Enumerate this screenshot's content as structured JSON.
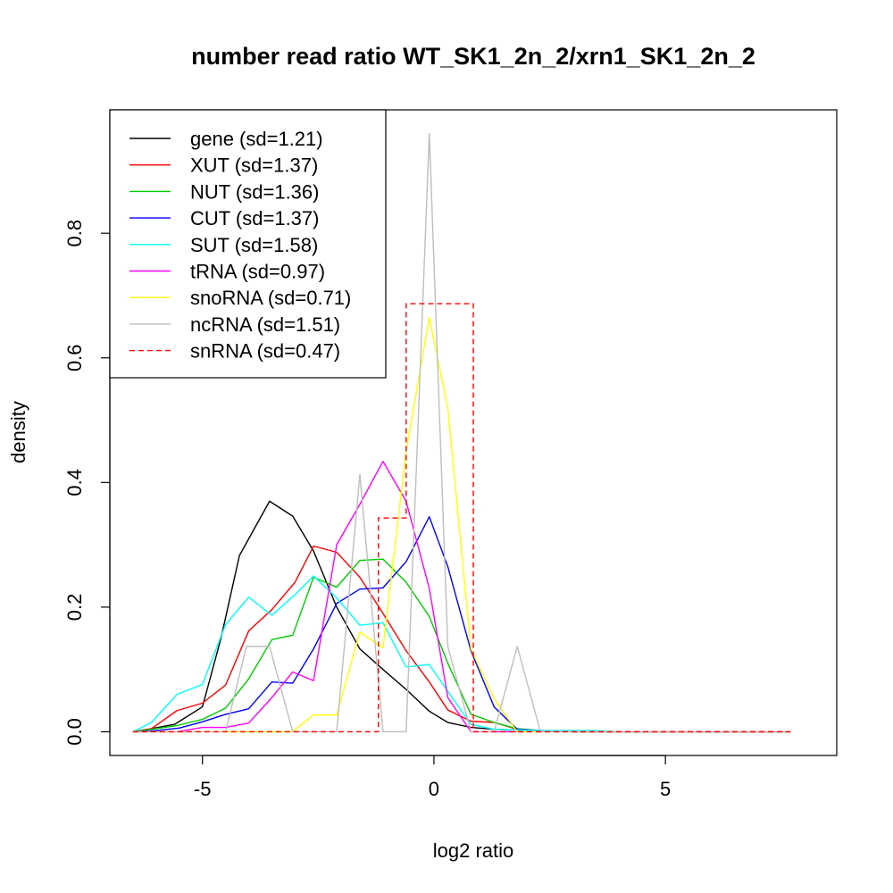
{
  "chart_data": {
    "type": "line",
    "title": "number read ratio WT_SK1_2n_2/xrn1_SK1_2n_2",
    "xlabel": "log2 ratio",
    "ylabel": "density",
    "xlim": [
      -7,
      8.7
    ],
    "ylim": [
      -0.038,
      0.998
    ],
    "xticks": [
      -5,
      0,
      5
    ],
    "xtick_labels": [
      "-5",
      "0",
      "5"
    ],
    "yticks": [
      0.0,
      0.2,
      0.4,
      0.6,
      0.8
    ],
    "ytick_labels": [
      "0.0",
      "0.2",
      "0.4",
      "0.6",
      "0.8"
    ],
    "grid": false,
    "legend_position": "top-left",
    "series": [
      {
        "name": "gene (sd=1.21)",
        "color": "#000000",
        "dash": false,
        "points": [
          [
            -6.5,
            0.0
          ],
          [
            -6.1,
            0.005
          ],
          [
            -5.6,
            0.012
          ],
          [
            -5.0,
            0.04
          ],
          [
            -4.6,
            0.15
          ],
          [
            -4.2,
            0.283
          ],
          [
            -3.55,
            0.37
          ],
          [
            -3.05,
            0.346
          ],
          [
            -2.6,
            0.29
          ],
          [
            -2.1,
            0.2
          ],
          [
            -1.6,
            0.133
          ],
          [
            -1.1,
            0.1
          ],
          [
            -0.6,
            0.068
          ],
          [
            -0.1,
            0.033
          ],
          [
            0.3,
            0.015
          ],
          [
            0.8,
            0.007
          ],
          [
            1.3,
            0.004
          ],
          [
            1.8,
            0.003
          ],
          [
            2.3,
            0.002
          ],
          [
            3.0,
            0.001
          ],
          [
            4.0,
            0.0
          ],
          [
            5.0,
            0.0
          ],
          [
            6.0,
            0.0
          ],
          [
            7.7,
            0.0
          ]
        ]
      },
      {
        "name": "XUT (sd=1.37)",
        "color": "#ff0000",
        "dash": false,
        "points": [
          [
            -6.5,
            0.0
          ],
          [
            -6.1,
            0.005
          ],
          [
            -5.55,
            0.034
          ],
          [
            -5.0,
            0.046
          ],
          [
            -4.5,
            0.075
          ],
          [
            -4.0,
            0.162
          ],
          [
            -3.5,
            0.196
          ],
          [
            -3.0,
            0.24
          ],
          [
            -2.6,
            0.298
          ],
          [
            -2.1,
            0.288
          ],
          [
            -1.6,
            0.248
          ],
          [
            -1.1,
            0.19
          ],
          [
            -0.6,
            0.13
          ],
          [
            -0.1,
            0.08
          ],
          [
            0.3,
            0.035
          ],
          [
            0.8,
            0.017
          ],
          [
            1.3,
            0.015
          ],
          [
            1.8,
            0.004
          ],
          [
            2.3,
            0.002
          ],
          [
            3.0,
            0.0
          ],
          [
            4.0,
            0.0
          ],
          [
            5.0,
            0.0
          ],
          [
            6.0,
            0.0
          ],
          [
            7.7,
            0.0
          ]
        ]
      },
      {
        "name": "NUT (sd=1.36)",
        "color": "#00cc00",
        "dash": false,
        "points": [
          [
            -6.5,
            0.0
          ],
          [
            -6.1,
            0.004
          ],
          [
            -5.55,
            0.01
          ],
          [
            -5.0,
            0.02
          ],
          [
            -4.5,
            0.038
          ],
          [
            -4.0,
            0.085
          ],
          [
            -3.5,
            0.148
          ],
          [
            -3.05,
            0.155
          ],
          [
            -2.6,
            0.248
          ],
          [
            -2.1,
            0.232
          ],
          [
            -1.6,
            0.275
          ],
          [
            -1.1,
            0.277
          ],
          [
            -0.6,
            0.24
          ],
          [
            -0.1,
            0.185
          ],
          [
            0.3,
            0.11
          ],
          [
            0.8,
            0.028
          ],
          [
            1.3,
            0.015
          ],
          [
            1.8,
            0.005
          ],
          [
            2.3,
            0.002
          ],
          [
            3.0,
            0.0
          ],
          [
            4.0,
            0.0
          ],
          [
            5.0,
            0.0
          ],
          [
            6.0,
            0.0
          ],
          [
            7.7,
            0.0
          ]
        ]
      },
      {
        "name": "CUT (sd=1.37)",
        "color": "#0000ff",
        "dash": false,
        "points": [
          [
            -6.5,
            0.0
          ],
          [
            -6.0,
            0.002
          ],
          [
            -5.5,
            0.006
          ],
          [
            -5.0,
            0.016
          ],
          [
            -4.5,
            0.028
          ],
          [
            -4.0,
            0.037
          ],
          [
            -3.5,
            0.08
          ],
          [
            -3.05,
            0.078
          ],
          [
            -2.6,
            0.133
          ],
          [
            -2.1,
            0.206
          ],
          [
            -1.6,
            0.229
          ],
          [
            -1.1,
            0.231
          ],
          [
            -0.6,
            0.273
          ],
          [
            -0.1,
            0.345
          ],
          [
            0.3,
            0.265
          ],
          [
            0.8,
            0.13
          ],
          [
            1.3,
            0.04
          ],
          [
            1.8,
            0.004
          ],
          [
            2.3,
            0.002
          ],
          [
            3.0,
            0.0
          ],
          [
            4.0,
            0.0
          ],
          [
            5.0,
            0.0
          ],
          [
            6.0,
            0.0
          ],
          [
            7.7,
            0.0
          ]
        ]
      },
      {
        "name": "SUT (sd=1.58)",
        "color": "#00ffff",
        "dash": false,
        "points": [
          [
            -6.5,
            0.0
          ],
          [
            -6.1,
            0.015
          ],
          [
            -5.55,
            0.06
          ],
          [
            -5.0,
            0.076
          ],
          [
            -4.5,
            0.172
          ],
          [
            -4.0,
            0.216
          ],
          [
            -3.5,
            0.187
          ],
          [
            -3.0,
            0.22
          ],
          [
            -2.6,
            0.25
          ],
          [
            -2.1,
            0.215
          ],
          [
            -1.6,
            0.171
          ],
          [
            -1.1,
            0.175
          ],
          [
            -0.6,
            0.104
          ],
          [
            -0.1,
            0.108
          ],
          [
            0.3,
            0.065
          ],
          [
            0.8,
            0.012
          ],
          [
            1.3,
            0.004
          ],
          [
            1.8,
            0.003
          ],
          [
            2.3,
            0.002
          ],
          [
            3.5,
            0.002
          ],
          [
            4.0,
            0.0
          ],
          [
            5.0,
            0.0
          ],
          [
            6.0,
            0.0
          ],
          [
            7.7,
            0.0
          ]
        ]
      },
      {
        "name": "tRNA (sd=0.97)",
        "color": "#ff00ff",
        "dash": false,
        "points": [
          [
            -6.5,
            0.0
          ],
          [
            -6.1,
            0.0
          ],
          [
            -5.55,
            0.0
          ],
          [
            -5.0,
            0.007
          ],
          [
            -4.5,
            0.007
          ],
          [
            -4.0,
            0.014
          ],
          [
            -3.5,
            0.055
          ],
          [
            -3.05,
            0.096
          ],
          [
            -2.6,
            0.082
          ],
          [
            -2.1,
            0.3
          ],
          [
            -1.6,
            0.365
          ],
          [
            -1.1,
            0.434
          ],
          [
            -0.6,
            0.37
          ],
          [
            -0.1,
            0.23
          ],
          [
            0.3,
            0.055
          ],
          [
            0.8,
            0.0
          ],
          [
            1.3,
            0.0
          ],
          [
            1.8,
            0.0
          ],
          [
            2.3,
            0.0
          ],
          [
            3.0,
            0.0
          ],
          [
            4.0,
            0.0
          ],
          [
            5.0,
            0.0
          ],
          [
            6.0,
            0.0
          ],
          [
            7.7,
            0.0
          ]
        ]
      },
      {
        "name": "snoRNA (sd=0.71)",
        "color": "#ffff00",
        "dash": false,
        "points": [
          [
            -6.5,
            0.0
          ],
          [
            -6.0,
            0.0
          ],
          [
            -5.0,
            0.0
          ],
          [
            -4.0,
            0.0
          ],
          [
            -3.05,
            0.0
          ],
          [
            -2.6,
            0.027
          ],
          [
            -2.1,
            0.027
          ],
          [
            -1.6,
            0.16
          ],
          [
            -1.1,
            0.135
          ],
          [
            -0.6,
            0.45
          ],
          [
            -0.1,
            0.665
          ],
          [
            0.3,
            0.52
          ],
          [
            0.8,
            0.133
          ],
          [
            1.3,
            0.053
          ],
          [
            1.8,
            0.0
          ],
          [
            2.3,
            0.0
          ],
          [
            3.0,
            0.0
          ],
          [
            4.0,
            0.0
          ],
          [
            5.0,
            0.0
          ],
          [
            6.0,
            0.0
          ],
          [
            7.7,
            0.0
          ]
        ]
      },
      {
        "name": "ncRNA (sd=1.51)",
        "color": "#bebebe",
        "dash": false,
        "points": [
          [
            -6.5,
            0.0
          ],
          [
            -6.0,
            0.0
          ],
          [
            -5.0,
            0.0
          ],
          [
            -4.5,
            0.0
          ],
          [
            -4.05,
            0.137
          ],
          [
            -3.55,
            0.137
          ],
          [
            -3.05,
            0.0
          ],
          [
            -2.6,
            0.0
          ],
          [
            -2.1,
            0.0
          ],
          [
            -1.6,
            0.413
          ],
          [
            -1.1,
            0.0
          ],
          [
            -0.6,
            0.0
          ],
          [
            -0.1,
            0.96
          ],
          [
            0.3,
            0.137
          ],
          [
            0.8,
            0.0
          ],
          [
            1.3,
            0.0
          ],
          [
            1.8,
            0.137
          ],
          [
            2.3,
            0.0
          ],
          [
            3.0,
            0.0
          ],
          [
            4.0,
            0.0
          ],
          [
            5.0,
            0.0
          ],
          [
            6.0,
            0.0
          ],
          [
            7.7,
            0.0
          ]
        ]
      },
      {
        "name": "snRNA (sd=0.47)",
        "color": "#ff0000",
        "dash": true,
        "step": true,
        "points": [
          [
            -6.5,
            0.0
          ],
          [
            -1.6,
            0.0
          ],
          [
            -1.2,
            0.343
          ],
          [
            -0.6,
            0.687
          ],
          [
            0.3,
            0.687
          ],
          [
            0.85,
            0.0
          ],
          [
            7.7,
            0.0
          ]
        ]
      }
    ]
  }
}
